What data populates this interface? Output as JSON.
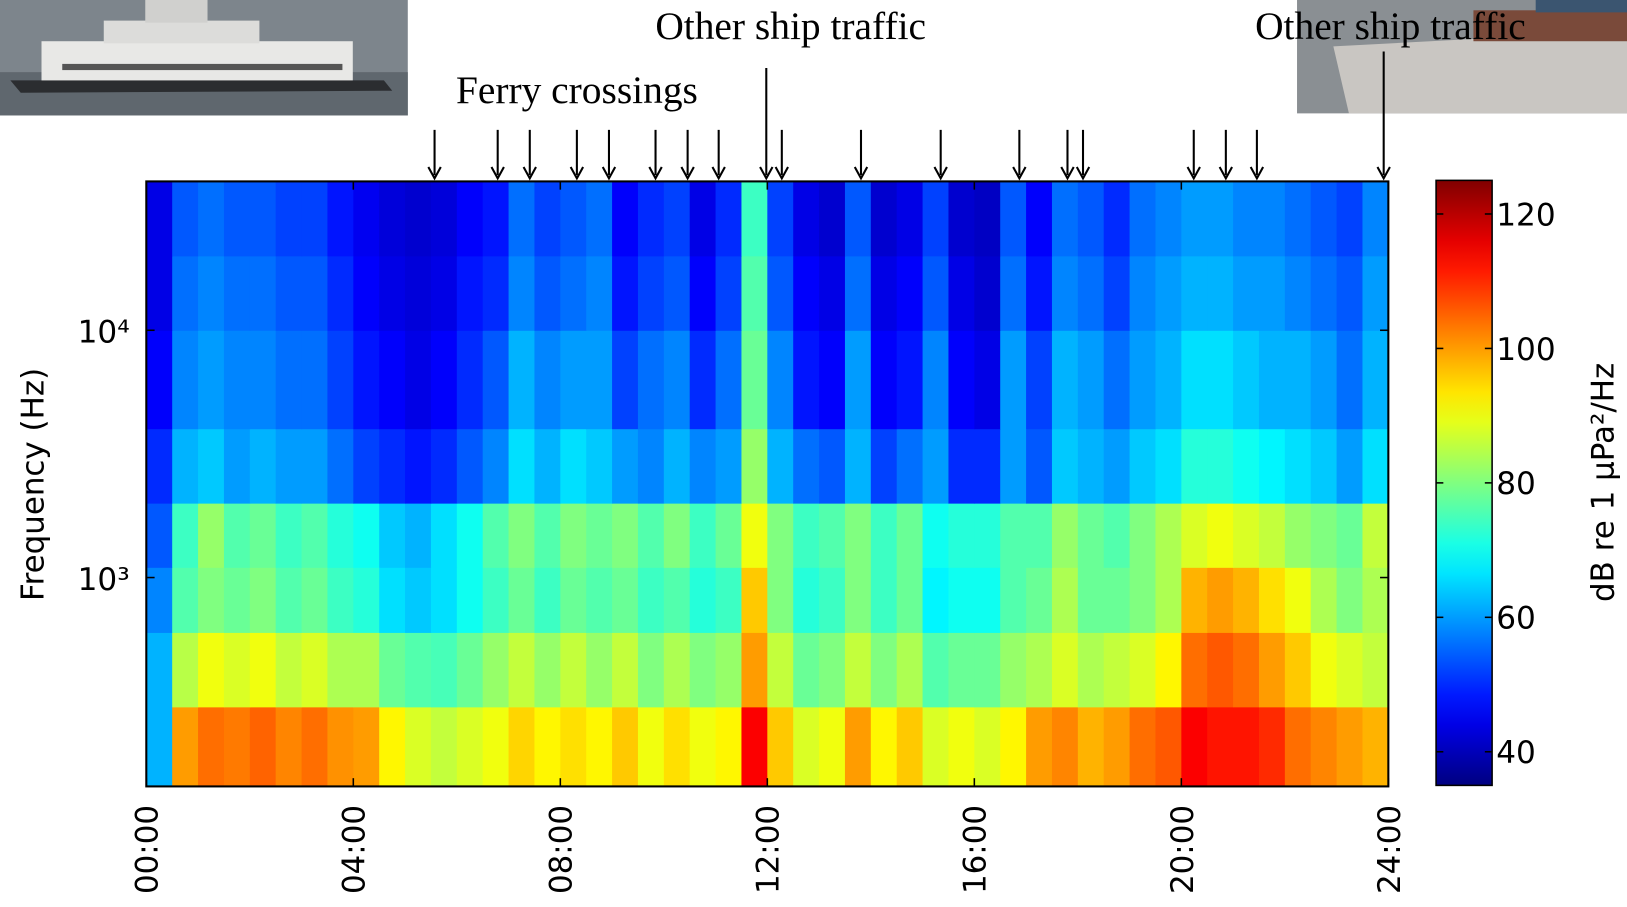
{
  "chart_data": {
    "type": "heatmap",
    "xlim": [
      0,
      24
    ],
    "xticks": [
      {
        "value": 0,
        "label": "00:00"
      },
      {
        "value": 4,
        "label": "04:00"
      },
      {
        "value": 8,
        "label": "08:00"
      },
      {
        "value": 12,
        "label": "12:00"
      },
      {
        "value": 16,
        "label": "16:00"
      },
      {
        "value": 20,
        "label": "20:00"
      },
      {
        "value": 24,
        "label": "24:00"
      }
    ],
    "ylabel": "Frequency (Hz)",
    "ylog": true,
    "ylim": [
      143,
      40000
    ],
    "yticks": [
      {
        "value": 1000,
        "label": "10³"
      },
      {
        "value": 10000,
        "label": "10⁴"
      }
    ],
    "colormap": "jet",
    "clim": [
      35,
      125
    ],
    "cticks": [
      40,
      60,
      80,
      100,
      120
    ],
    "colorbar_label": "dB re 1 μPa²/Hz",
    "x_bins": [
      0,
      0.5,
      1,
      1.5,
      2,
      2.5,
      3,
      3.5,
      4,
      4.5,
      5,
      5.5,
      6,
      6.5,
      7,
      7.5,
      8,
      8.5,
      9,
      9.5,
      10,
      10.5,
      11,
      11.5,
      12,
      12.5,
      13,
      13.5,
      14,
      14.5,
      15,
      15.5,
      16,
      16.5,
      17,
      17.5,
      18,
      18.5,
      19,
      19.5,
      20,
      20.5,
      21,
      21.5,
      22,
      22.5,
      23,
      23.5,
      24
    ],
    "y_bins": [
      143,
      300,
      600,
      1100,
      2000,
      4000,
      10000,
      20000,
      40000
    ],
    "z": [
      [
        62,
        100,
        104,
        103,
        105,
        102,
        104,
        101,
        100,
        92,
        88,
        86,
        88,
        90,
        95,
        92,
        94,
        92,
        96,
        90,
        94,
        90,
        92,
        114,
        96,
        88,
        90,
        100,
        92,
        96,
        88,
        90,
        88,
        92,
        100,
        102,
        98,
        100,
        104,
        106,
        114,
        112,
        112,
        110,
        104,
        102,
        100,
        98
      ],
      [
        62,
        85,
        90,
        88,
        90,
        86,
        88,
        84,
        84,
        78,
        76,
        75,
        78,
        82,
        86,
        82,
        86,
        82,
        86,
        80,
        84,
        80,
        82,
        100,
        86,
        78,
        80,
        86,
        80,
        84,
        76,
        78,
        78,
        82,
        84,
        88,
        84,
        86,
        88,
        92,
        104,
        106,
        104,
        100,
        96,
        90,
        88,
        86
      ],
      [
        58,
        76,
        80,
        78,
        80,
        76,
        78,
        74,
        72,
        66,
        64,
        66,
        70,
        74,
        78,
        74,
        78,
        76,
        78,
        74,
        76,
        72,
        74,
        96,
        80,
        72,
        74,
        80,
        74,
        78,
        68,
        70,
        70,
        76,
        78,
        84,
        78,
        78,
        80,
        84,
        98,
        100,
        98,
        94,
        90,
        84,
        80,
        84
      ],
      [
        54,
        74,
        82,
        76,
        78,
        74,
        76,
        72,
        70,
        64,
        62,
        66,
        70,
        76,
        80,
        76,
        80,
        78,
        80,
        76,
        80,
        74,
        78,
        90,
        80,
        74,
        76,
        80,
        74,
        78,
        70,
        72,
        72,
        76,
        76,
        82,
        78,
        76,
        80,
        84,
        88,
        90,
        88,
        86,
        82,
        80,
        78,
        86
      ],
      [
        50,
        62,
        64,
        60,
        62,
        60,
        60,
        56,
        52,
        50,
        48,
        50,
        54,
        58,
        66,
        62,
        66,
        64,
        60,
        58,
        62,
        58,
        60,
        82,
        62,
        56,
        54,
        62,
        52,
        56,
        60,
        50,
        50,
        60,
        54,
        64,
        62,
        60,
        64,
        66,
        72,
        72,
        70,
        68,
        66,
        64,
        60,
        66
      ],
      [
        46,
        58,
        60,
        58,
        58,
        56,
        56,
        52,
        48,
        46,
        44,
        46,
        50,
        54,
        62,
        58,
        60,
        60,
        52,
        56,
        58,
        50,
        56,
        78,
        58,
        48,
        46,
        60,
        46,
        48,
        58,
        46,
        44,
        60,
        52,
        62,
        60,
        56,
        60,
        62,
        66,
        66,
        64,
        62,
        62,
        60,
        56,
        62
      ],
      [
        44,
        56,
        58,
        56,
        56,
        54,
        54,
        50,
        46,
        44,
        43,
        44,
        48,
        50,
        58,
        54,
        56,
        58,
        48,
        52,
        54,
        46,
        52,
        76,
        54,
        46,
        44,
        56,
        44,
        46,
        54,
        44,
        42,
        56,
        48,
        58,
        56,
        52,
        58,
        60,
        62,
        62,
        60,
        60,
        58,
        56,
        54,
        60
      ],
      [
        44,
        54,
        56,
        54,
        54,
        52,
        52,
        48,
        45,
        43,
        42,
        43,
        46,
        48,
        56,
        52,
        54,
        56,
        46,
        50,
        52,
        44,
        50,
        74,
        52,
        44,
        42,
        54,
        42,
        44,
        52,
        42,
        41,
        54,
        46,
        56,
        54,
        50,
        56,
        58,
        60,
        60,
        58,
        58,
        56,
        54,
        52,
        58
      ]
    ],
    "annotations": [
      {
        "text": "Ferry crossings",
        "times": [
          5.57,
          6.79,
          7.41,
          8.32,
          8.94,
          9.84,
          10.46,
          11.06,
          12.28,
          13.81,
          15.35,
          16.87,
          17.8,
          18.1,
          20.24,
          20.86,
          21.46
        ]
      },
      {
        "text": "Other ship traffic",
        "times": [
          11.98
        ]
      },
      {
        "text": "Other ship traffic",
        "times": [
          23.91
        ]
      }
    ]
  }
}
